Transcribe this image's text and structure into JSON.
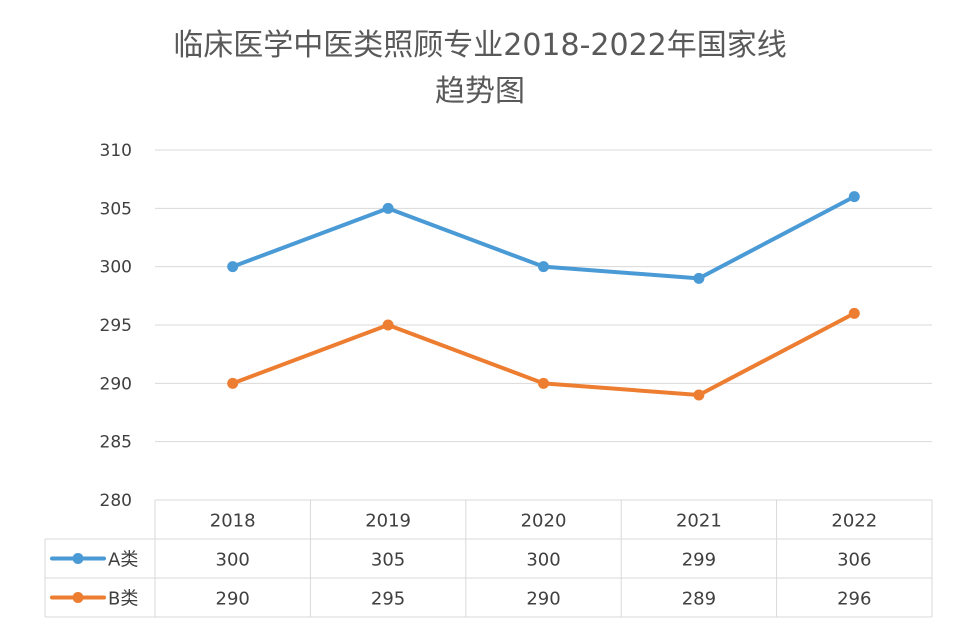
{
  "chart_data": {
    "type": "line",
    "title": "临床医学中医类照顾专业2018-2022年国家线",
    "subtitle": "趋势图",
    "categories": [
      "2018",
      "2019",
      "2020",
      "2021",
      "2022"
    ],
    "series": [
      {
        "name": "A类",
        "color": "#4a9ad6",
        "values": [
          300,
          305,
          300,
          299,
          306
        ]
      },
      {
        "name": "B类",
        "color": "#ed7d31",
        "values": [
          290,
          295,
          290,
          289,
          296
        ]
      }
    ],
    "ylim": [
      280,
      310
    ],
    "yticks": [
      280,
      285,
      290,
      295,
      300,
      305,
      310
    ],
    "grid": true,
    "legend": "data-table",
    "data_table": true
  }
}
